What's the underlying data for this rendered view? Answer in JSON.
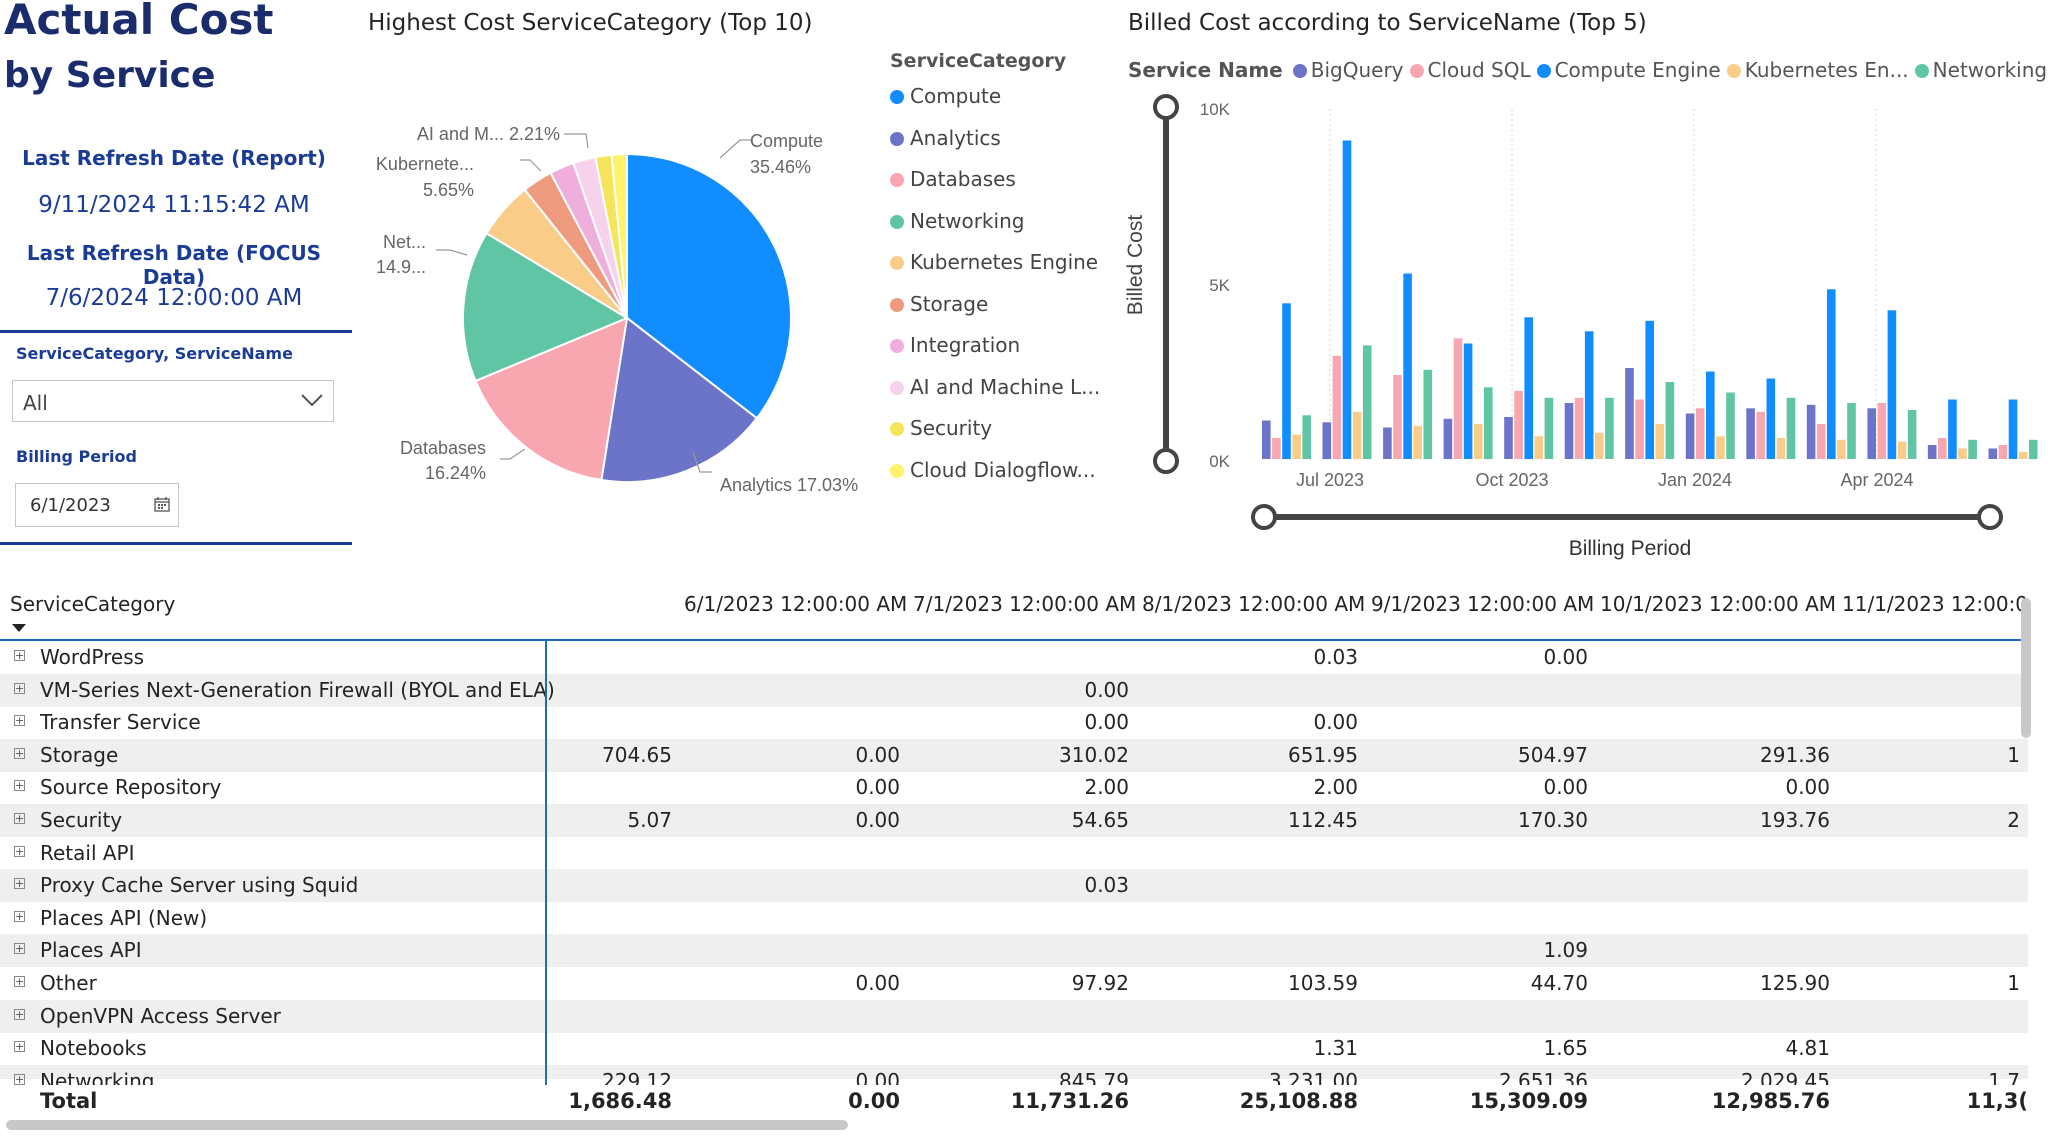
{
  "report": {
    "title_line1": "Actual Cost",
    "title_line2": "by Service",
    "refresh_report_label": "Last Refresh Date (Report)",
    "refresh_report_value": "9/11/2024 11:15:42 AM",
    "refresh_focus_label": "Last Refresh Date (FOCUS Data)",
    "refresh_focus_value": "7/6/2024 12:00:00 AM"
  },
  "slicers": {
    "category_label": "ServiceCategory, ServiceName",
    "category_value": "All",
    "billing_label": "Billing Period",
    "billing_value": "6/1/2023"
  },
  "pie_chart": {
    "title": "Highest Cost ServiceCategory (Top 10)",
    "legend_title": "ServiceCategory",
    "legend": [
      {
        "label": "Compute",
        "color": "#118DFF"
      },
      {
        "label": "Analytics",
        "color": "#6B74C8"
      },
      {
        "label": "Databases",
        "color": "#F8A7B1"
      },
      {
        "label": "Networking",
        "color": "#5FC5A5"
      },
      {
        "label": "Kubernetes Engine",
        "color": "#FACC89"
      },
      {
        "label": "Storage",
        "color": "#EE9A7E"
      },
      {
        "label": "Integration",
        "color": "#F0AEDC"
      },
      {
        "label": "AI and Machine L...",
        "color": "#F6D2EC"
      },
      {
        "label": "Security",
        "color": "#F4E55A"
      },
      {
        "label": "Cloud Dialogflow...",
        "color": "#FFF36B"
      }
    ],
    "labels": {
      "compute_name": "Compute",
      "compute_pct": "35.46%",
      "analytics": "Analytics 17.03%",
      "databases_name": "Databases",
      "databases_pct": "16.24%",
      "networking_name": "Net...",
      "networking_pct": "14.9...",
      "kubernetes_name": "Kubernete...",
      "kubernetes_pct": "5.65%",
      "ai": "AI and M... 2.21%"
    }
  },
  "chart_data": {
    "type": "pie",
    "title": "Highest Cost ServiceCategory (Top 10)",
    "categories": [
      "Compute",
      "Analytics",
      "Databases",
      "Networking",
      "Kubernetes Engine",
      "Storage",
      "Integration",
      "AI and Machine L...",
      "Security",
      "Cloud Dialogflow..."
    ],
    "values": [
      35.46,
      17.03,
      16.24,
      14.9,
      5.65,
      3.0,
      2.4,
      2.21,
      1.6,
      1.5
    ],
    "colors": [
      "#118DFF",
      "#6B74C8",
      "#F8A7B1",
      "#5FC5A5",
      "#FACC89",
      "#EE9A7E",
      "#F0AEDC",
      "#F6D2EC",
      "#F4E55A",
      "#FFF36B"
    ]
  },
  "bar_chart": {
    "title": "Billed Cost according to ServiceName (Top 5)",
    "legend_title": "Service Name",
    "series": [
      {
        "name": "BigQuery",
        "color": "#6B74C8",
        "values": [
          1100,
          1050,
          900,
          1150,
          1200,
          1600,
          2600,
          1300,
          1450,
          1550,
          1450,
          400,
          300
        ]
      },
      {
        "name": "Cloud SQL",
        "color": "#F8A7B1",
        "values": [
          600,
          2950,
          2400,
          3450,
          1950,
          1750,
          1700,
          1450,
          1350,
          1000,
          1600,
          600,
          400
        ]
      },
      {
        "name": "Compute Engine",
        "color": "#118DFF",
        "values": [
          4450,
          9100,
          5300,
          3300,
          4050,
          3650,
          3950,
          2500,
          2300,
          4850,
          4250,
          1700,
          1700
        ]
      },
      {
        "name": "Kubernetes En...",
        "color": "#FACC89",
        "values": [
          700,
          1350,
          950,
          1000,
          650,
          750,
          1000,
          650,
          600,
          550,
          500,
          300,
          200
        ]
      },
      {
        "name": "Networking",
        "color": "#5FC5A5",
        "values": [
          1250,
          3250,
          2550,
          2050,
          1750,
          1750,
          2200,
          1900,
          1750,
          1600,
          1400,
          550,
          550
        ]
      }
    ],
    "y_ticks": [
      "10K",
      "5K",
      "0K"
    ],
    "y_label": "Billed Cost",
    "x_ticks": [
      "Jul 2023",
      "Oct 2023",
      "Jan 2024",
      "Apr 2024"
    ],
    "x_label": "Billing Period",
    "ylim": [
      0,
      10000
    ]
  },
  "matrix": {
    "row_header": "ServiceCategory",
    "columns": [
      "6/1/2023 12:00:00 AM",
      "7/1/2023 12:00:00 AM",
      "8/1/2023 12:00:00 AM",
      "9/1/2023 12:00:00 AM",
      "10/1/2023 12:00:00 AM",
      "11/1/2023 12:00:0"
    ],
    "rows": [
      {
        "name": "WordPress",
        "vals": [
          "",
          "",
          "",
          "0.03",
          "0.00",
          ""
        ]
      },
      {
        "name": "VM-Series Next-Generation Firewall (BYOL and ELA)",
        "vals": [
          "",
          "",
          "0.00",
          "",
          "",
          ""
        ]
      },
      {
        "name": "Transfer Service",
        "vals": [
          "",
          "",
          "0.00",
          "0.00",
          "",
          ""
        ]
      },
      {
        "name": "Storage",
        "vals": [
          "704.65",
          "0.00",
          "310.02",
          "651.95",
          "504.97",
          "291.36"
        ],
        "extra": "1"
      },
      {
        "name": "Source Repository",
        "vals": [
          "",
          "0.00",
          "2.00",
          "2.00",
          "0.00",
          "0.00"
        ]
      },
      {
        "name": "Security",
        "vals": [
          "5.07",
          "0.00",
          "54.65",
          "112.45",
          "170.30",
          "193.76"
        ],
        "extra": "2"
      },
      {
        "name": "Retail API",
        "vals": [
          "",
          "",
          "",
          "",
          "",
          ""
        ]
      },
      {
        "name": "Proxy Cache Server using Squid",
        "vals": [
          "",
          "",
          "0.03",
          "",
          "",
          ""
        ]
      },
      {
        "name": "Places API (New)",
        "vals": [
          "",
          "",
          "",
          "",
          "",
          ""
        ]
      },
      {
        "name": "Places API",
        "vals": [
          "",
          "",
          "",
          "",
          "1.09",
          ""
        ]
      },
      {
        "name": "Other",
        "vals": [
          "",
          "0.00",
          "97.92",
          "103.59",
          "44.70",
          "125.90"
        ],
        "extra": "1"
      },
      {
        "name": "OpenVPN Access Server",
        "vals": [
          "",
          "",
          "",
          "",
          "",
          ""
        ]
      },
      {
        "name": "Notebooks",
        "vals": [
          "",
          "",
          "",
          "1.31",
          "1.65",
          "4.81"
        ]
      },
      {
        "name": "Networking",
        "vals": [
          "229.12",
          "0.00",
          "845.79",
          "3,231.00",
          "2,651.36",
          "2,029.45"
        ],
        "extra": "1,7"
      }
    ],
    "total_label": "Total",
    "totals": [
      "1,686.48",
      "0.00",
      "11,731.26",
      "25,108.88",
      "15,309.09",
      "12,985.76"
    ],
    "total_extra": "11,3("
  }
}
